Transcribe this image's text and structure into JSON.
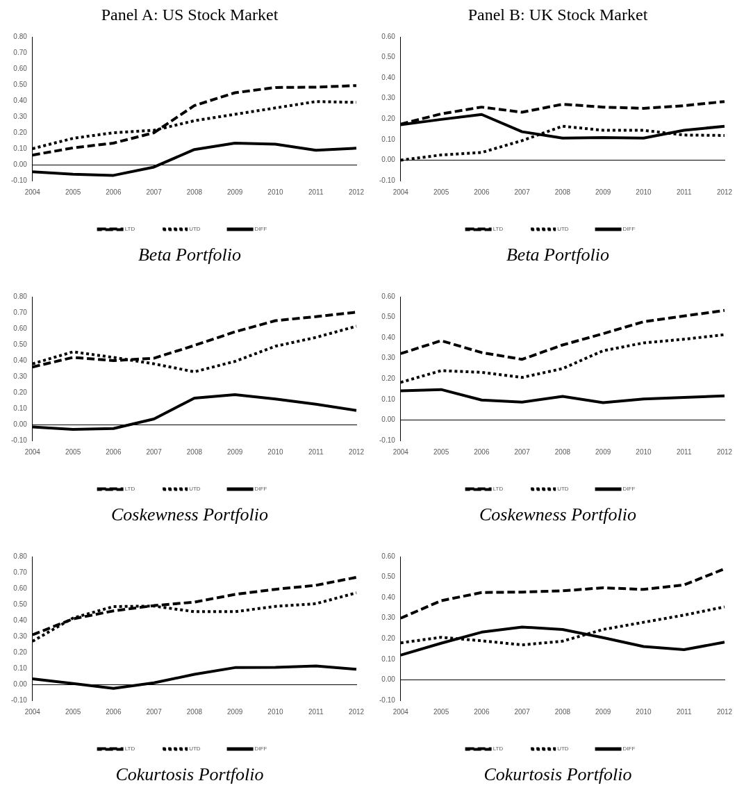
{
  "chart_data": [
    {
      "type": "line",
      "title": "Panel A: US Stock Market",
      "xlabel": "Beta Portfolio",
      "categories": [
        "2004",
        "2005",
        "2006",
        "2007",
        "2008",
        "2009",
        "2010",
        "2011",
        "2012"
      ],
      "ylim": [
        -0.1,
        0.8
      ],
      "yticks": [
        {
          "value": -0.1,
          "label": "-0.10"
        },
        {
          "value": 0,
          "label": "0.00"
        },
        {
          "value": 0.1,
          "label": "0.10"
        },
        {
          "value": 0.2,
          "label": "0.20"
        },
        {
          "value": 0.3,
          "label": "0.30"
        },
        {
          "value": 0.4,
          "label": "0.40"
        },
        {
          "value": 0.5,
          "label": "0.50"
        },
        {
          "value": 0.6,
          "label": "0.60"
        },
        {
          "value": 0.7,
          "label": "0.70"
        },
        {
          "value": 0.8,
          "label": "0.80"
        }
      ],
      "legend": "bottom",
      "series": [
        {
          "name": "LTD",
          "color": "#000000",
          "line_style": "dashed",
          "values": [
            0.06,
            0.105,
            0.135,
            0.2,
            0.37,
            0.45,
            0.483,
            0.485,
            0.495
          ]
        },
        {
          "name": "UTD",
          "color": "#000000",
          "line_style": "dotted",
          "values": [
            0.1,
            0.165,
            0.2,
            0.215,
            0.275,
            0.315,
            0.355,
            0.395,
            0.39
          ]
        },
        {
          "name": "DIFF",
          "color": "#000000",
          "line_style": "solid",
          "values": [
            -0.045,
            -0.06,
            -0.067,
            -0.015,
            0.095,
            0.135,
            0.128,
            0.09,
            0.103
          ]
        }
      ]
    },
    {
      "type": "line",
      "title": "Panel B: UK Stock Market",
      "xlabel": "Beta Portfolio",
      "categories": [
        "2004",
        "2005",
        "2006",
        "2007",
        "2008",
        "2009",
        "2010",
        "2011",
        "2012"
      ],
      "ylim": [
        -0.1,
        0.6
      ],
      "yticks": [
        {
          "value": -0.1,
          "label": "-0.10"
        },
        {
          "value": 0,
          "label": "0.00"
        },
        {
          "value": 0.1,
          "label": "0.10"
        },
        {
          "value": 0.2,
          "label": "0.20"
        },
        {
          "value": 0.3,
          "label": "0.30"
        },
        {
          "value": 0.4,
          "label": "0.40"
        },
        {
          "value": 0.5,
          "label": "0.50"
        },
        {
          "value": 0.6,
          "label": "0.60"
        }
      ],
      "legend": "bottom",
      "series": [
        {
          "name": "LTD",
          "color": "#000000",
          "line_style": "dashed",
          "values": [
            0.175,
            0.225,
            0.258,
            0.233,
            0.272,
            0.258,
            0.252,
            0.265,
            0.285
          ]
        },
        {
          "name": "UTD",
          "color": "#000000",
          "line_style": "dotted",
          "values": [
            0.0,
            0.025,
            0.037,
            0.095,
            0.165,
            0.145,
            0.145,
            0.122,
            0.12
          ]
        },
        {
          "name": "DIFF",
          "color": "#000000",
          "line_style": "solid",
          "values": [
            0.172,
            0.198,
            0.222,
            0.138,
            0.107,
            0.11,
            0.107,
            0.145,
            0.165
          ]
        }
      ]
    },
    {
      "type": "line",
      "xlabel": "Coskewness Portfolio",
      "categories": [
        "2004",
        "2005",
        "2006",
        "2007",
        "2008",
        "2009",
        "2010",
        "2011",
        "2012"
      ],
      "ylim": [
        -0.1,
        0.8
      ],
      "yticks": [
        {
          "value": -0.1,
          "label": "-0.10"
        },
        {
          "value": 0,
          "label": "0.00"
        },
        {
          "value": 0.1,
          "label": "0.10"
        },
        {
          "value": 0.2,
          "label": "0.20"
        },
        {
          "value": 0.3,
          "label": "0.30"
        },
        {
          "value": 0.4,
          "label": "0.40"
        },
        {
          "value": 0.5,
          "label": "0.50"
        },
        {
          "value": 0.6,
          "label": "0.60"
        },
        {
          "value": 0.7,
          "label": "0.70"
        },
        {
          "value": 0.8,
          "label": "0.80"
        }
      ],
      "legend": "bottom",
      "series": [
        {
          "name": "LTD",
          "color": "#000000",
          "line_style": "dashed",
          "values": [
            0.36,
            0.42,
            0.4,
            0.415,
            0.495,
            0.58,
            0.65,
            0.675,
            0.703
          ]
        },
        {
          "name": "UTD",
          "color": "#000000",
          "line_style": "dotted",
          "values": [
            0.38,
            0.455,
            0.42,
            0.38,
            0.33,
            0.395,
            0.49,
            0.545,
            0.615
          ]
        },
        {
          "name": "DIFF",
          "color": "#000000",
          "line_style": "solid",
          "values": [
            -0.015,
            -0.03,
            -0.025,
            0.035,
            0.165,
            0.187,
            0.16,
            0.127,
            0.088
          ]
        }
      ]
    },
    {
      "type": "line",
      "xlabel": "Coskewness Portfolio",
      "categories": [
        "2004",
        "2005",
        "2006",
        "2007",
        "2008",
        "2009",
        "2010",
        "2011",
        "2012"
      ],
      "ylim": [
        -0.1,
        0.6
      ],
      "yticks": [
        {
          "value": -0.1,
          "label": "-0.10"
        },
        {
          "value": 0,
          "label": "0.00"
        },
        {
          "value": 0.1,
          "label": "0.10"
        },
        {
          "value": 0.2,
          "label": "0.20"
        },
        {
          "value": 0.3,
          "label": "0.30"
        },
        {
          "value": 0.4,
          "label": "0.40"
        },
        {
          "value": 0.5,
          "label": "0.50"
        },
        {
          "value": 0.6,
          "label": "0.60"
        }
      ],
      "legend": "bottom",
      "series": [
        {
          "name": "LTD",
          "color": "#000000",
          "line_style": "dashed",
          "values": [
            0.323,
            0.386,
            0.328,
            0.295,
            0.365,
            0.42,
            0.478,
            0.506,
            0.533
          ]
        },
        {
          "name": "UTD",
          "color": "#000000",
          "line_style": "dotted",
          "values": [
            0.183,
            0.24,
            0.232,
            0.207,
            0.25,
            0.337,
            0.375,
            0.393,
            0.415
          ]
        },
        {
          "name": "DIFF",
          "color": "#000000",
          "line_style": "solid",
          "values": [
            0.142,
            0.148,
            0.097,
            0.087,
            0.115,
            0.084,
            0.102,
            0.11,
            0.117
          ]
        }
      ]
    },
    {
      "type": "line",
      "xlabel": "Cokurtosis Portfolio",
      "categories": [
        "2004",
        "2005",
        "2006",
        "2007",
        "2008",
        "2009",
        "2010",
        "2011",
        "2012"
      ],
      "ylim": [
        -0.1,
        0.8
      ],
      "yticks": [
        {
          "value": -0.1,
          "label": "-0.10"
        },
        {
          "value": 0,
          "label": "0.00"
        },
        {
          "value": 0.1,
          "label": "0.10"
        },
        {
          "value": 0.2,
          "label": "0.20"
        },
        {
          "value": 0.3,
          "label": "0.30"
        },
        {
          "value": 0.4,
          "label": "0.40"
        },
        {
          "value": 0.5,
          "label": "0.50"
        },
        {
          "value": 0.6,
          "label": "0.60"
        },
        {
          "value": 0.7,
          "label": "0.70"
        },
        {
          "value": 0.8,
          "label": "0.80"
        }
      ],
      "legend": "bottom",
      "series": [
        {
          "name": "LTD",
          "color": "#000000",
          "line_style": "dashed",
          "values": [
            0.31,
            0.41,
            0.46,
            0.493,
            0.515,
            0.563,
            0.595,
            0.62,
            0.67
          ]
        },
        {
          "name": "UTD",
          "color": "#000000",
          "line_style": "dotted",
          "values": [
            0.27,
            0.415,
            0.487,
            0.49,
            0.455,
            0.455,
            0.488,
            0.505,
            0.573
          ]
        },
        {
          "name": "DIFF",
          "color": "#000000",
          "line_style": "solid",
          "values": [
            0.035,
            0.005,
            -0.025,
            0.01,
            0.063,
            0.105,
            0.107,
            0.115,
            0.095
          ]
        }
      ]
    },
    {
      "type": "line",
      "xlabel": "Cokurtosis Portfolio",
      "categories": [
        "2004",
        "2005",
        "2006",
        "2007",
        "2008",
        "2009",
        "2010",
        "2011",
        "2012"
      ],
      "ylim": [
        -0.1,
        0.6
      ],
      "yticks": [
        {
          "value": -0.1,
          "label": "-0.10"
        },
        {
          "value": 0,
          "label": "0.00"
        },
        {
          "value": 0.1,
          "label": "0.10"
        },
        {
          "value": 0.2,
          "label": "0.20"
        },
        {
          "value": 0.3,
          "label": "0.30"
        },
        {
          "value": 0.4,
          "label": "0.40"
        },
        {
          "value": 0.5,
          "label": "0.50"
        },
        {
          "value": 0.6,
          "label": "0.60"
        }
      ],
      "legend": "bottom",
      "series": [
        {
          "name": "LTD",
          "color": "#000000",
          "line_style": "dashed",
          "values": [
            0.3,
            0.385,
            0.425,
            0.427,
            0.433,
            0.448,
            0.44,
            0.462,
            0.54
          ]
        },
        {
          "name": "UTD",
          "color": "#000000",
          "line_style": "dotted",
          "values": [
            0.18,
            0.207,
            0.19,
            0.17,
            0.188,
            0.245,
            0.28,
            0.315,
            0.355
          ]
        },
        {
          "name": "DIFF",
          "color": "#000000",
          "line_style": "solid",
          "values": [
            0.12,
            0.178,
            0.232,
            0.257,
            0.245,
            0.205,
            0.162,
            0.147,
            0.183
          ]
        }
      ]
    }
  ]
}
